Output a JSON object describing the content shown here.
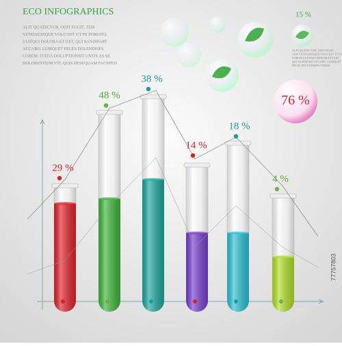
{
  "header": {
    "title": "ECO INFOGRAPHICS",
    "body": [
      "ALIT QUATECTUR, ODIT FUGIT, TEM",
      "VENDAESEQUE VOLO EST UT PE PORIATQ",
      "UIATQUI DOLORA ET EXT, QUI SANDIPART",
      "ACCABO. LUMQUET PELES DOLENDISPA",
      "COREM. ITATIA DOLUPTIONSIT UNTIS AS SE",
      "DOLORESTIUM VIT, QUIS DESEQUAM FACEPED"
    ]
  },
  "side": {
    "label": "15 %",
    "body": [
      "ALIT QUATECTUR, ODIT FUGIT,",
      "TEM VENDAESEQUE VOLO EST UT PE",
      "PORIATQ UIATQUI DOLORA ET EXT,",
      "QUI SANDIPART ACCABO. LUMQUET",
      "PELES DOLENDISPA COREM."
    ],
    "bubble_label": "76 %"
  },
  "tubes": [
    {
      "label": "29 %"
    },
    {
      "label": "48 %"
    },
    {
      "label": "38 %"
    },
    {
      "label": "14 %"
    },
    {
      "label": "18 %"
    },
    {
      "label": "4 %"
    }
  ],
  "watermark": "77757803"
}
